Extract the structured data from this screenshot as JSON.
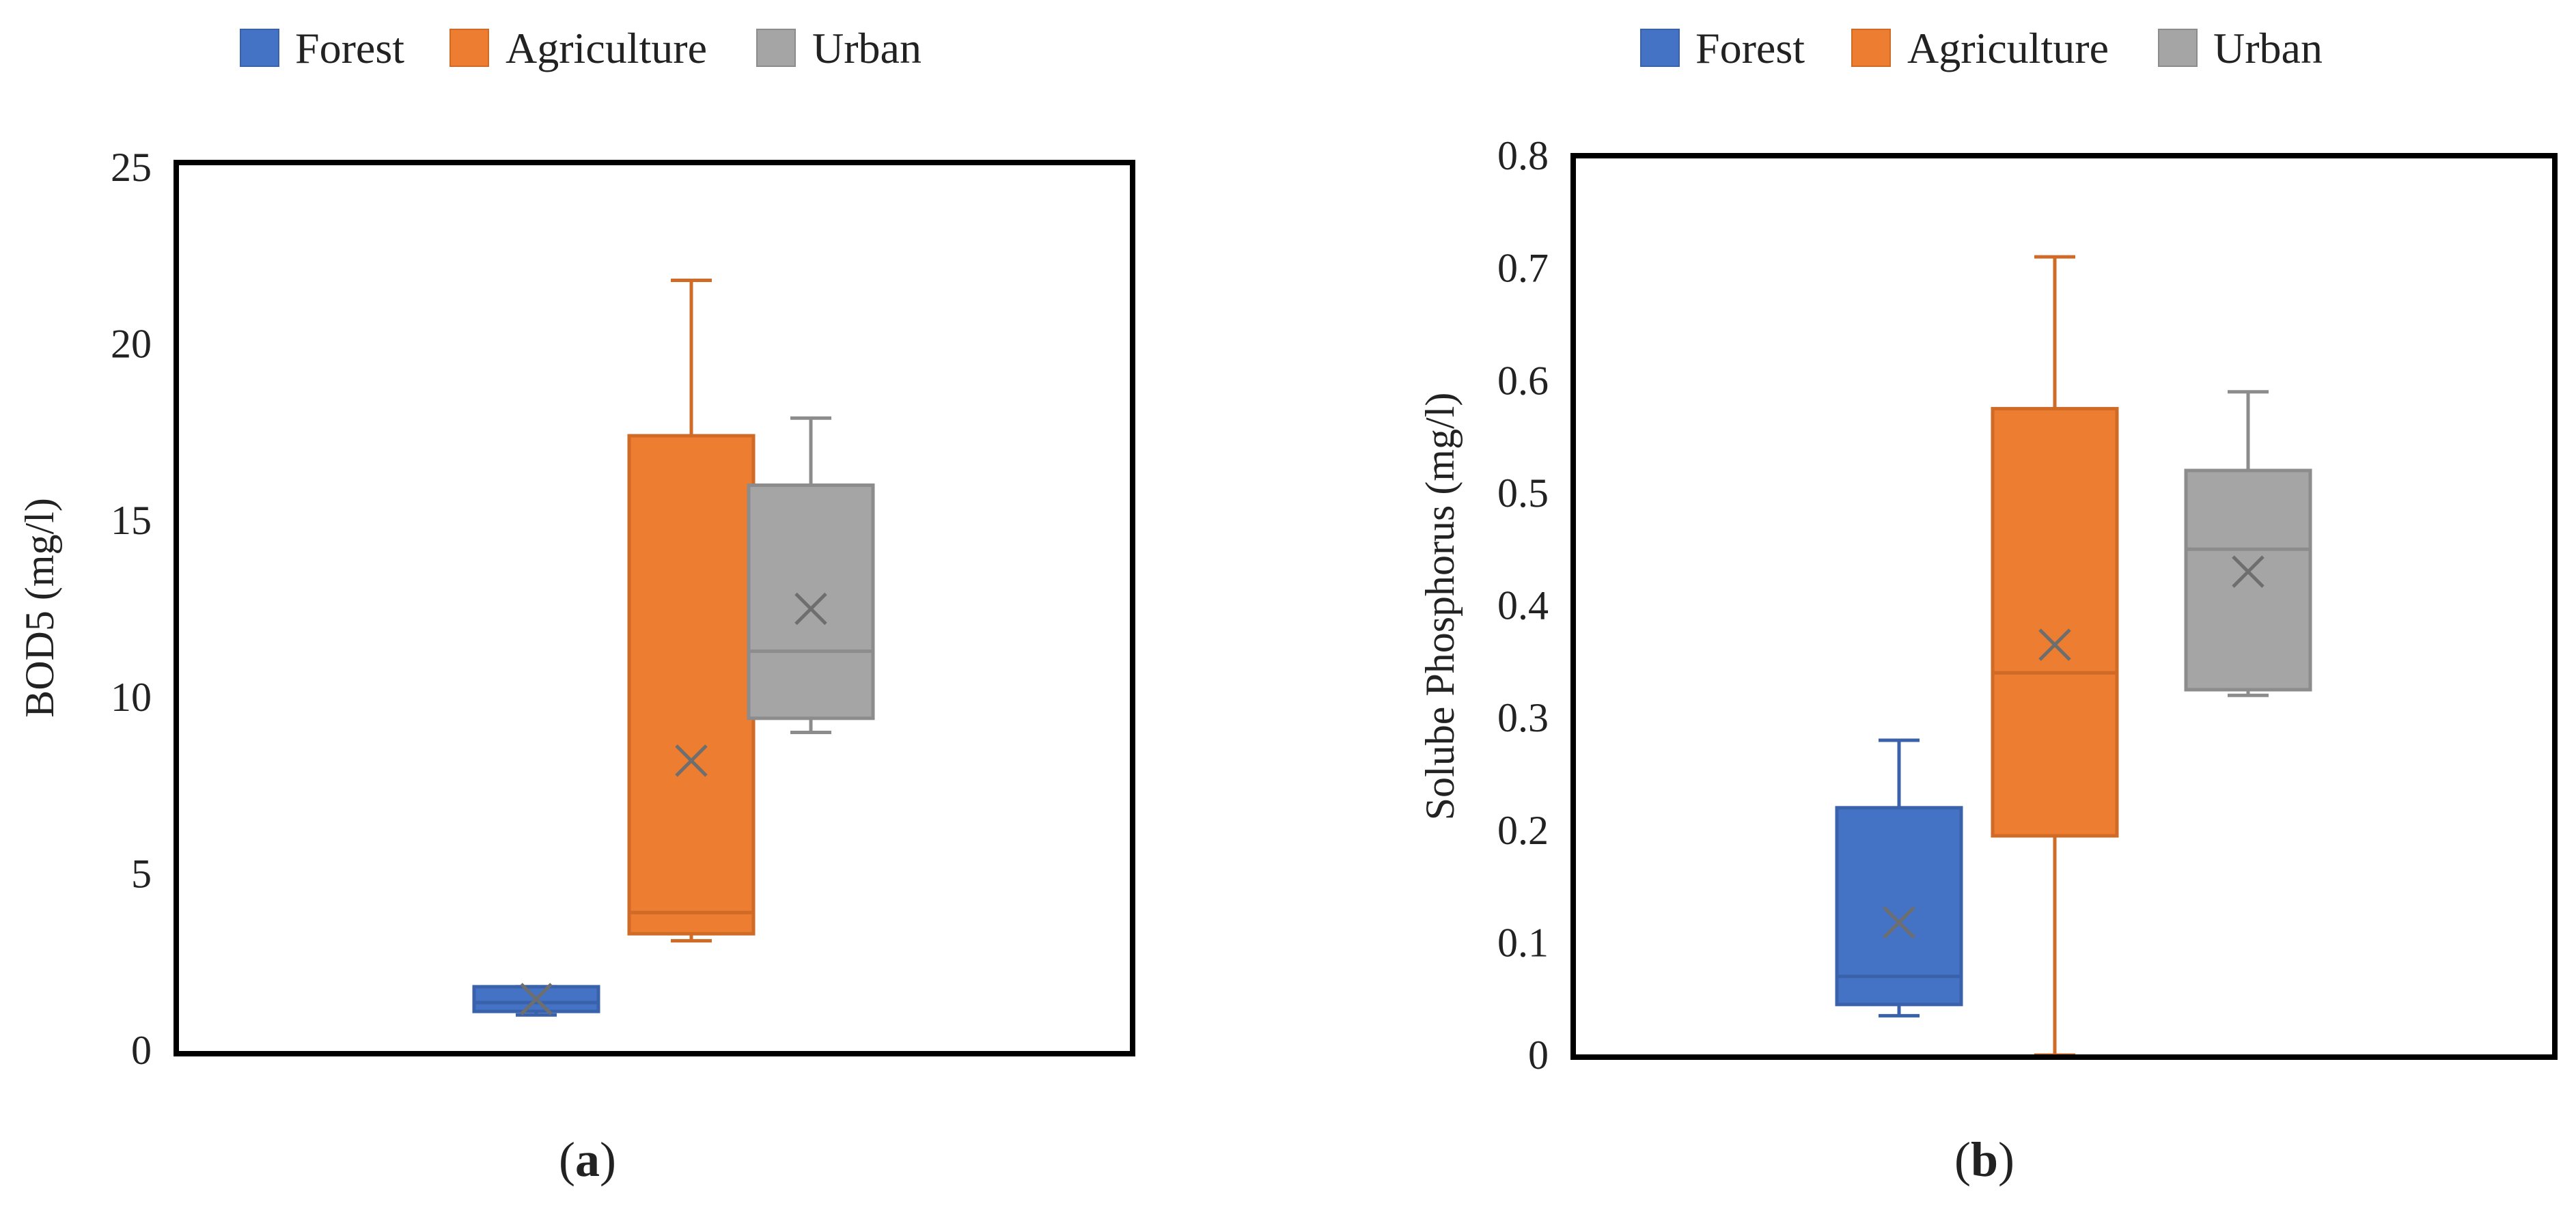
{
  "chart_data": [
    {
      "type": "box",
      "panel_label": "a",
      "ylabel": "BOD5 (mg/l)",
      "xlabel": "",
      "ylim": [
        0,
        25
      ],
      "yticks": [
        "0",
        "5",
        "10",
        "15",
        "20",
        "25"
      ],
      "grid": false,
      "legend": {
        "placement": "top-center",
        "entries": [
          "Forest",
          "Agriculture",
          "Urban"
        ]
      },
      "series": [
        {
          "name": "Forest",
          "color": "#4472c4",
          "min": 1.0,
          "q1": 1.1,
          "median": 1.35,
          "q3": 1.8,
          "max": 1.8,
          "mean": 1.45
        },
        {
          "name": "Agriculture",
          "color": "#ed7d31",
          "min": 3.1,
          "q1": 3.3,
          "median": 3.9,
          "q3": 17.4,
          "max": 21.8,
          "mean": 8.2
        },
        {
          "name": "Urban",
          "color": "#a5a5a5",
          "min": 9.0,
          "q1": 9.4,
          "median": 11.3,
          "q3": 16.0,
          "max": 17.9,
          "mean": 12.5
        }
      ]
    },
    {
      "type": "box",
      "panel_label": "b",
      "ylabel": "Solube Phosphorus (mg/l)",
      "xlabel": "",
      "ylim": [
        0,
        0.8
      ],
      "yticks": [
        "0",
        "0.1",
        "0.2",
        "0.3",
        "0.4",
        "0.5",
        "0.6",
        "0.7",
        "0.8"
      ],
      "grid": false,
      "legend": {
        "placement": "top-center",
        "entries": [
          "Forest",
          "Agriculture",
          "Urban"
        ]
      },
      "series": [
        {
          "name": "Forest",
          "color": "#4472c4",
          "min": 0.035,
          "q1": 0.045,
          "median": 0.07,
          "q3": 0.22,
          "max": 0.28,
          "mean": 0.118
        },
        {
          "name": "Agriculture",
          "color": "#ed7d31",
          "min": 0.0,
          "q1": 0.195,
          "median": 0.34,
          "q3": 0.575,
          "max": 0.71,
          "mean": 0.365
        },
        {
          "name": "Urban",
          "color": "#a5a5a5",
          "min": 0.32,
          "q1": 0.325,
          "median": 0.45,
          "q3": 0.52,
          "max": 0.59,
          "mean": 0.43
        }
      ]
    }
  ],
  "colors": {
    "forest_stroke": "#3a62ab",
    "agriculture_stroke": "#cf6a27",
    "urban_stroke": "#8c8c8c",
    "frame": "#000000",
    "tick": "#222222"
  }
}
